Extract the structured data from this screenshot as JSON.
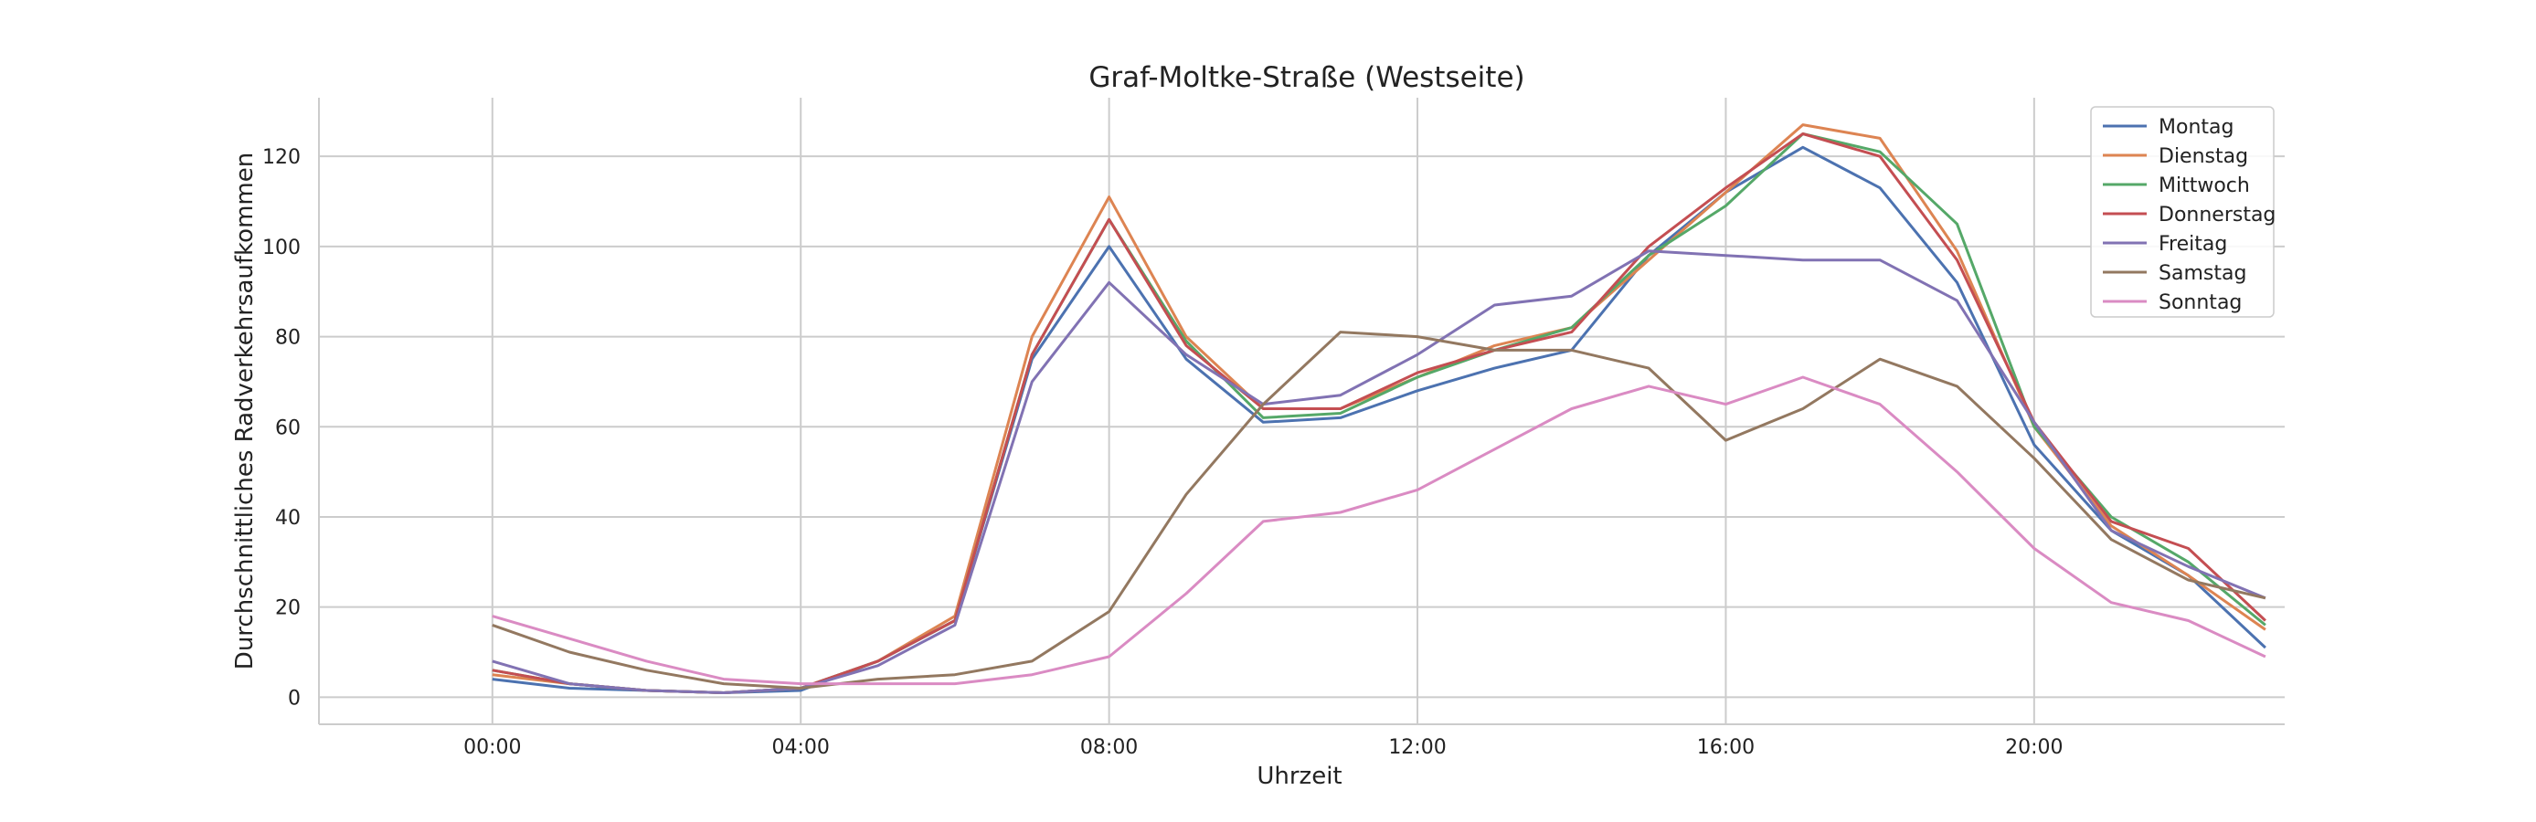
{
  "chart_data": {
    "type": "line",
    "title": "Graf-Moltke-Straße (Westseite)",
    "xlabel": "Uhrzeit",
    "ylabel": "Durchschnittliches Radverkehrsaufkommen",
    "x": [
      0,
      1,
      2,
      3,
      4,
      5,
      6,
      7,
      8,
      9,
      10,
      11,
      12,
      13,
      14,
      15,
      16,
      17,
      18,
      19,
      20,
      21,
      22,
      23
    ],
    "xlim": [
      -2.25,
      23.25
    ],
    "ylim": [
      -6,
      133
    ],
    "xticks": [
      0,
      4,
      8,
      12,
      16,
      20
    ],
    "xtick_labels": [
      "00:00",
      "04:00",
      "08:00",
      "12:00",
      "16:00",
      "20:00"
    ],
    "yticks": [
      0,
      20,
      40,
      60,
      80,
      100,
      120
    ],
    "ytick_labels": [
      "0",
      "20",
      "40",
      "60",
      "80",
      "100",
      "120"
    ],
    "grid": true,
    "legend_position": "top-right",
    "series": [
      {
        "name": "Montag",
        "color": "#4c72b0",
        "values": [
          4,
          2,
          1.5,
          1,
          1.5,
          8,
          17,
          75,
          100,
          75,
          61,
          62,
          68,
          73,
          77,
          98,
          112,
          122,
          113,
          92,
          56,
          37,
          27,
          11
        ]
      },
      {
        "name": "Dienstag",
        "color": "#dd8452",
        "values": [
          5,
          3,
          1.5,
          1,
          2,
          8,
          18,
          80,
          111,
          80,
          64,
          64,
          71,
          78,
          82,
          97,
          112,
          127,
          124,
          99,
          60,
          38,
          27,
          15
        ]
      },
      {
        "name": "Mittwoch",
        "color": "#55a868",
        "values": [
          6,
          3,
          1.5,
          1,
          2,
          8,
          17,
          76,
          106,
          79,
          62,
          63,
          71,
          77,
          82,
          98,
          109,
          125,
          121,
          105,
          60,
          40,
          30,
          16
        ]
      },
      {
        "name": "Donnerstag",
        "color": "#c44e52",
        "values": [
          6,
          3,
          1.5,
          1,
          2,
          8,
          17,
          76,
          106,
          78,
          64,
          64,
          72,
          77,
          81,
          100,
          113,
          125,
          120,
          97,
          61,
          39,
          33,
          17
        ]
      },
      {
        "name": "Freitag",
        "color": "#8172b3",
        "values": [
          8,
          3,
          1.5,
          1,
          2,
          7,
          16,
          70,
          92,
          76,
          65,
          67,
          76,
          87,
          89,
          99,
          98,
          97,
          97,
          88,
          61,
          37,
          29,
          22
        ]
      },
      {
        "name": "Samstag",
        "color": "#937860",
        "values": [
          16,
          10,
          6,
          3,
          2,
          4,
          5,
          8,
          19,
          45,
          65,
          81,
          80,
          77,
          77,
          73,
          57,
          64,
          75,
          69,
          53,
          35,
          26,
          22
        ]
      },
      {
        "name": "Sonntag",
        "color": "#da8bc3",
        "values": [
          18,
          13,
          8,
          4,
          3,
          3,
          3,
          5,
          9,
          23,
          39,
          41,
          46,
          55,
          64,
          69,
          65,
          71,
          65,
          50,
          33,
          21,
          17,
          9
        ]
      }
    ]
  }
}
